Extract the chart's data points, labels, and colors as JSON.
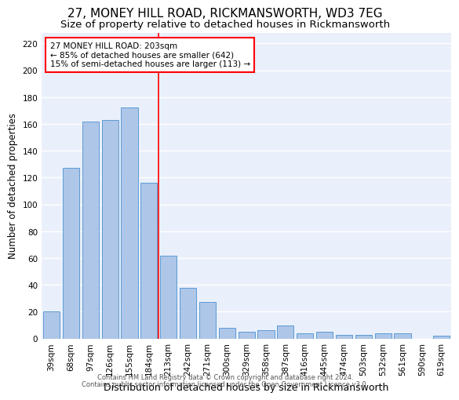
{
  "title1": "27, MONEY HILL ROAD, RICKMANSWORTH, WD3 7EG",
  "title2": "Size of property relative to detached houses in Rickmansworth",
  "xlabel": "Distribution of detached houses by size in Rickmansworth",
  "ylabel": "Number of detached properties",
  "categories": [
    "39sqm",
    "68sqm",
    "97sqm",
    "126sqm",
    "155sqm",
    "184sqm",
    "213sqm",
    "242sqm",
    "271sqm",
    "300sqm",
    "329sqm",
    "358sqm",
    "387sqm",
    "416sqm",
    "445sqm",
    "474sqm",
    "503sqm",
    "532sqm",
    "561sqm",
    "590sqm",
    "619sqm"
  ],
  "values": [
    20,
    127,
    162,
    163,
    172,
    116,
    62,
    38,
    27,
    8,
    5,
    6,
    10,
    4,
    5,
    3,
    3,
    4,
    4,
    0,
    2
  ],
  "bar_color": "#aec6e8",
  "bar_edge_color": "#5b9bd5",
  "vline_x_index": 6,
  "vline_color": "red",
  "annotation_text": "27 MONEY HILL ROAD: 203sqm\n← 85% of detached houses are smaller (642)\n15% of semi-detached houses are larger (113) →",
  "annotation_box_color": "white",
  "annotation_box_edge": "red",
  "ylim": [
    0,
    228
  ],
  "yticks": [
    0,
    20,
    40,
    60,
    80,
    100,
    120,
    140,
    160,
    180,
    200,
    220
  ],
  "footer1": "Contains HM Land Registry data © Crown copyright and database right 2024.",
  "footer2": "Contains public sector information licensed under the Open Government Licence v3.0.",
  "bg_color": "#eaf0fb",
  "grid_color": "#ffffff",
  "title1_fontsize": 11,
  "title2_fontsize": 9.5,
  "tick_fontsize": 7.5,
  "ylabel_fontsize": 8.5,
  "xlabel_fontsize": 9,
  "footer_fontsize": 6
}
